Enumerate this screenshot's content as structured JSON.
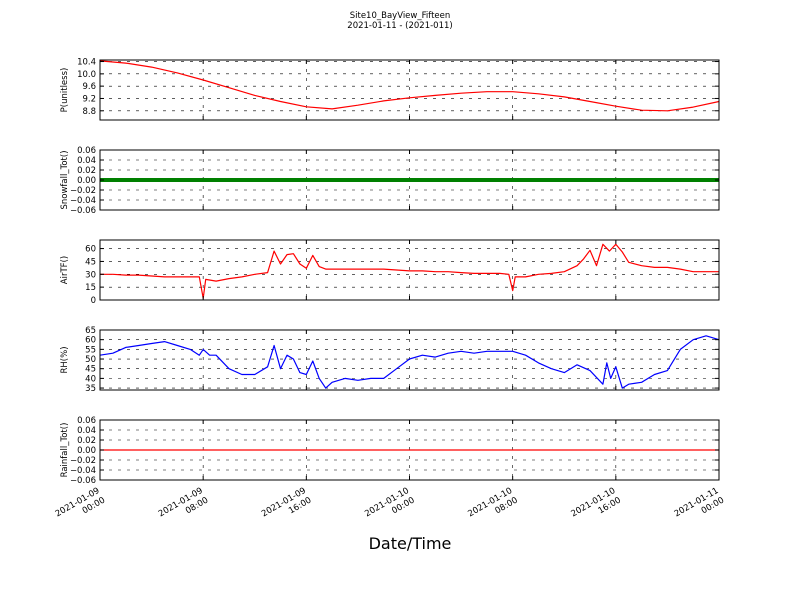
{
  "figure": {
    "title": "Site10_BayView_Fifteen",
    "subtitle": "2021-01-11 - (2021-011)",
    "xlabel": "Date/Time"
  },
  "chart_data": [
    {
      "type": "line",
      "ylabel": "P(unitless)",
      "color": "#ff0000",
      "ylim": [
        8.5,
        10.45
      ],
      "yticks": [
        "10.4",
        "10.0",
        "9.6",
        "9.2",
        "8.8"
      ],
      "grid": true,
      "x": [
        0,
        2,
        4,
        6,
        8,
        10,
        12,
        14,
        16,
        18,
        20,
        22,
        24,
        26,
        28,
        30,
        32,
        34,
        36,
        38,
        40,
        42,
        44,
        46,
        48
      ],
      "values": [
        10.42,
        10.35,
        10.22,
        10.03,
        9.8,
        9.55,
        9.3,
        9.1,
        8.93,
        8.86,
        8.98,
        9.12,
        9.22,
        9.3,
        9.37,
        9.42,
        9.42,
        9.35,
        9.25,
        9.1,
        8.95,
        8.82,
        8.8,
        8.92,
        9.1
      ]
    },
    {
      "type": "line",
      "ylabel": "Snowfall_Tot()",
      "color": "#008000",
      "ylim": [
        -0.06,
        0.06
      ],
      "yticks": [
        "0.06",
        "0.04",
        "0.02",
        "0.00",
        "−0.02",
        "−0.04",
        "−0.06"
      ],
      "grid": true,
      "x": [
        0,
        48
      ],
      "values": [
        0,
        0
      ]
    },
    {
      "type": "line",
      "ylabel": "AirTF()",
      "color": "#ff0000",
      "ylim": [
        0,
        70
      ],
      "yticks": [
        "60",
        "45",
        "30",
        "15",
        "0"
      ],
      "grid": true,
      "x": [
        0,
        1,
        2,
        3,
        4,
        5,
        6,
        7,
        7.7,
        8,
        8.2,
        9,
        10,
        11,
        12,
        13,
        13.5,
        14,
        14.5,
        15,
        15.5,
        16,
        16.5,
        17,
        17.5,
        18,
        19,
        20,
        21,
        22,
        23,
        24,
        25,
        26,
        27,
        28,
        29,
        30,
        31,
        31.7,
        32,
        32.2,
        33,
        34,
        35,
        36,
        37,
        37.5,
        38,
        38.5,
        39,
        39.5,
        40,
        40.5,
        41,
        42,
        43,
        44,
        45,
        46,
        47,
        48
      ],
      "values": [
        30,
        30,
        29,
        29,
        28,
        27,
        27,
        27,
        27,
        2,
        24,
        22,
        25,
        27,
        30,
        32,
        57,
        42,
        53,
        54,
        42,
        37,
        52,
        39,
        36,
        36,
        36,
        36,
        36,
        36,
        35,
        34,
        34,
        33,
        33,
        32,
        31,
        31,
        31,
        30,
        11,
        27,
        27,
        30,
        31,
        33,
        40,
        48,
        58,
        40,
        65,
        57,
        65,
        56,
        44,
        40,
        38,
        38,
        36,
        33,
        33,
        33
      ]
    },
    {
      "type": "line",
      "ylabel": "RH(%)",
      "color": "#0000ff",
      "ylim": [
        34,
        65
      ],
      "yticks": [
        "65",
        "60",
        "55",
        "50",
        "45",
        "40",
        "35"
      ],
      "grid": true,
      "x": [
        0,
        1,
        2,
        3,
        4,
        5,
        6,
        7,
        7.7,
        8,
        8.5,
        9,
        10,
        11,
        12,
        13,
        13.5,
        14,
        14.5,
        15,
        15.5,
        16,
        16.5,
        17,
        17.5,
        18,
        19,
        20,
        21,
        22,
        23,
        24,
        25,
        26,
        27,
        28,
        29,
        30,
        31,
        32,
        33,
        34,
        35,
        36,
        37,
        38,
        39,
        39.3,
        39.6,
        40,
        40.5,
        41,
        42,
        43,
        44,
        45,
        46,
        47,
        48
      ],
      "values": [
        52,
        53,
        56,
        57,
        58,
        59,
        57,
        55,
        52,
        55,
        52,
        52,
        45,
        42,
        42,
        46,
        57,
        45,
        52,
        50,
        43,
        42,
        49,
        40,
        35,
        38,
        40,
        39,
        40,
        40,
        45,
        50,
        52,
        51,
        53,
        54,
        53,
        54,
        54,
        54,
        52,
        48,
        45,
        43,
        47,
        44,
        37,
        48,
        40,
        46,
        35,
        37,
        38,
        42,
        44,
        55,
        60,
        62,
        60
      ]
    },
    {
      "type": "line",
      "ylabel": "Rainfall_Tot()",
      "color": "#ff0000",
      "ylim": [
        -0.06,
        0.06
      ],
      "yticks": [
        "0.06",
        "0.04",
        "0.02",
        "0.00",
        "−0.02",
        "−0.04",
        "−0.06"
      ],
      "grid": true,
      "x": [
        0,
        48
      ],
      "values": [
        0,
        0
      ]
    }
  ],
  "xaxis": {
    "range_hours": [
      0,
      48
    ],
    "ticks": [
      {
        "hours": 0,
        "line1": "2021-01-09",
        "line2": "00:00"
      },
      {
        "hours": 8,
        "line1": "2021-01-09",
        "line2": "08:00"
      },
      {
        "hours": 16,
        "line1": "2021-01-09",
        "line2": "16:00"
      },
      {
        "hours": 24,
        "line1": "2021-01-10",
        "line2": "00:00"
      },
      {
        "hours": 32,
        "line1": "2021-01-10",
        "line2": "08:00"
      },
      {
        "hours": 40,
        "line1": "2021-01-10",
        "line2": "16:00"
      },
      {
        "hours": 48,
        "line1": "2021-01-11",
        "line2": "00:00"
      }
    ]
  }
}
